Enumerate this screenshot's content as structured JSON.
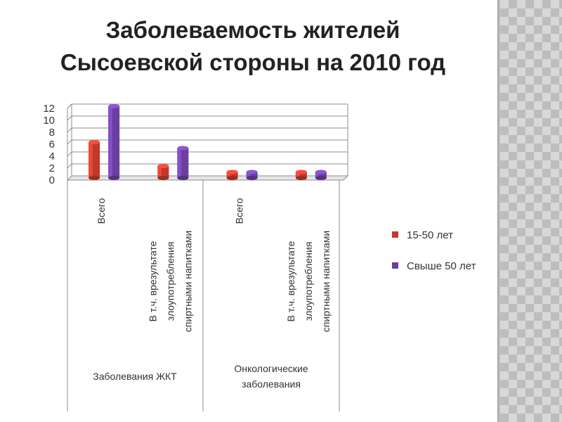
{
  "slide": {
    "title_line1": "Заболеваемость жителей",
    "title_line2": "Сысоевской стороны на 2010 год"
  },
  "chart_data": {
    "type": "bar",
    "title": "Заболеваемость жителей Сысоевской стороны на 2010 год",
    "groups": [
      {
        "label_lines": [
          "Заболевания ЖКТ"
        ],
        "categories": [
          {
            "label_lines": [
              "Всего"
            ]
          },
          {
            "label_lines": [
              "В т.ч. врезультате",
              "злоупотребления",
              "спиртными напитками"
            ]
          }
        ]
      },
      {
        "label_lines": [
          "Онкологические",
          "заболевания"
        ],
        "categories": [
          {
            "label_lines": [
              "Всего"
            ]
          },
          {
            "label_lines": [
              "В т.ч. врезультате",
              "злоупотребления",
              "спиртными напитками"
            ]
          }
        ]
      }
    ],
    "series": [
      {
        "name": "15-50 лет",
        "color": "#c0392b",
        "values": [
          6,
          2,
          1,
          1
        ]
      },
      {
        "name": "Свыше 50 лет",
        "color": "#6a3fa0",
        "values": [
          12,
          5,
          1,
          1
        ]
      }
    ],
    "y_ticks": [
      0,
      2,
      4,
      6,
      8,
      10,
      12
    ],
    "ylim": [
      0,
      12
    ],
    "grid": true,
    "legend_position": "right"
  }
}
